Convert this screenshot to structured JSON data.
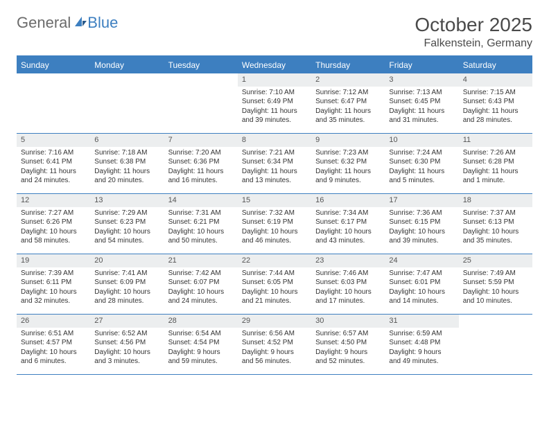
{
  "logo": {
    "text_general": "General",
    "text_blue": "Blue"
  },
  "title": "October 2025",
  "location": "Falkenstein, Germany",
  "colors": {
    "accent": "#3d7fc0",
    "header_bg": "#3d7fc0",
    "header_text": "#ffffff",
    "daynum_bg": "#eceeef",
    "text": "#333333",
    "logo_grey": "#6b6b6b"
  },
  "day_headers": [
    "Sunday",
    "Monday",
    "Tuesday",
    "Wednesday",
    "Thursday",
    "Friday",
    "Saturday"
  ],
  "weeks": [
    [
      {
        "day": "",
        "sunrise": "",
        "sunset": "",
        "daylight": ""
      },
      {
        "day": "",
        "sunrise": "",
        "sunset": "",
        "daylight": ""
      },
      {
        "day": "",
        "sunrise": "",
        "sunset": "",
        "daylight": ""
      },
      {
        "day": "1",
        "sunrise": "Sunrise: 7:10 AM",
        "sunset": "Sunset: 6:49 PM",
        "daylight": "Daylight: 11 hours and 39 minutes."
      },
      {
        "day": "2",
        "sunrise": "Sunrise: 7:12 AM",
        "sunset": "Sunset: 6:47 PM",
        "daylight": "Daylight: 11 hours and 35 minutes."
      },
      {
        "day": "3",
        "sunrise": "Sunrise: 7:13 AM",
        "sunset": "Sunset: 6:45 PM",
        "daylight": "Daylight: 11 hours and 31 minutes."
      },
      {
        "day": "4",
        "sunrise": "Sunrise: 7:15 AM",
        "sunset": "Sunset: 6:43 PM",
        "daylight": "Daylight: 11 hours and 28 minutes."
      }
    ],
    [
      {
        "day": "5",
        "sunrise": "Sunrise: 7:16 AM",
        "sunset": "Sunset: 6:41 PM",
        "daylight": "Daylight: 11 hours and 24 minutes."
      },
      {
        "day": "6",
        "sunrise": "Sunrise: 7:18 AM",
        "sunset": "Sunset: 6:38 PM",
        "daylight": "Daylight: 11 hours and 20 minutes."
      },
      {
        "day": "7",
        "sunrise": "Sunrise: 7:20 AM",
        "sunset": "Sunset: 6:36 PM",
        "daylight": "Daylight: 11 hours and 16 minutes."
      },
      {
        "day": "8",
        "sunrise": "Sunrise: 7:21 AM",
        "sunset": "Sunset: 6:34 PM",
        "daylight": "Daylight: 11 hours and 13 minutes."
      },
      {
        "day": "9",
        "sunrise": "Sunrise: 7:23 AM",
        "sunset": "Sunset: 6:32 PM",
        "daylight": "Daylight: 11 hours and 9 minutes."
      },
      {
        "day": "10",
        "sunrise": "Sunrise: 7:24 AM",
        "sunset": "Sunset: 6:30 PM",
        "daylight": "Daylight: 11 hours and 5 minutes."
      },
      {
        "day": "11",
        "sunrise": "Sunrise: 7:26 AM",
        "sunset": "Sunset: 6:28 PM",
        "daylight": "Daylight: 11 hours and 1 minute."
      }
    ],
    [
      {
        "day": "12",
        "sunrise": "Sunrise: 7:27 AM",
        "sunset": "Sunset: 6:26 PM",
        "daylight": "Daylight: 10 hours and 58 minutes."
      },
      {
        "day": "13",
        "sunrise": "Sunrise: 7:29 AM",
        "sunset": "Sunset: 6:23 PM",
        "daylight": "Daylight: 10 hours and 54 minutes."
      },
      {
        "day": "14",
        "sunrise": "Sunrise: 7:31 AM",
        "sunset": "Sunset: 6:21 PM",
        "daylight": "Daylight: 10 hours and 50 minutes."
      },
      {
        "day": "15",
        "sunrise": "Sunrise: 7:32 AM",
        "sunset": "Sunset: 6:19 PM",
        "daylight": "Daylight: 10 hours and 46 minutes."
      },
      {
        "day": "16",
        "sunrise": "Sunrise: 7:34 AM",
        "sunset": "Sunset: 6:17 PM",
        "daylight": "Daylight: 10 hours and 43 minutes."
      },
      {
        "day": "17",
        "sunrise": "Sunrise: 7:36 AM",
        "sunset": "Sunset: 6:15 PM",
        "daylight": "Daylight: 10 hours and 39 minutes."
      },
      {
        "day": "18",
        "sunrise": "Sunrise: 7:37 AM",
        "sunset": "Sunset: 6:13 PM",
        "daylight": "Daylight: 10 hours and 35 minutes."
      }
    ],
    [
      {
        "day": "19",
        "sunrise": "Sunrise: 7:39 AM",
        "sunset": "Sunset: 6:11 PM",
        "daylight": "Daylight: 10 hours and 32 minutes."
      },
      {
        "day": "20",
        "sunrise": "Sunrise: 7:41 AM",
        "sunset": "Sunset: 6:09 PM",
        "daylight": "Daylight: 10 hours and 28 minutes."
      },
      {
        "day": "21",
        "sunrise": "Sunrise: 7:42 AM",
        "sunset": "Sunset: 6:07 PM",
        "daylight": "Daylight: 10 hours and 24 minutes."
      },
      {
        "day": "22",
        "sunrise": "Sunrise: 7:44 AM",
        "sunset": "Sunset: 6:05 PM",
        "daylight": "Daylight: 10 hours and 21 minutes."
      },
      {
        "day": "23",
        "sunrise": "Sunrise: 7:46 AM",
        "sunset": "Sunset: 6:03 PM",
        "daylight": "Daylight: 10 hours and 17 minutes."
      },
      {
        "day": "24",
        "sunrise": "Sunrise: 7:47 AM",
        "sunset": "Sunset: 6:01 PM",
        "daylight": "Daylight: 10 hours and 14 minutes."
      },
      {
        "day": "25",
        "sunrise": "Sunrise: 7:49 AM",
        "sunset": "Sunset: 5:59 PM",
        "daylight": "Daylight: 10 hours and 10 minutes."
      }
    ],
    [
      {
        "day": "26",
        "sunrise": "Sunrise: 6:51 AM",
        "sunset": "Sunset: 4:57 PM",
        "daylight": "Daylight: 10 hours and 6 minutes."
      },
      {
        "day": "27",
        "sunrise": "Sunrise: 6:52 AM",
        "sunset": "Sunset: 4:56 PM",
        "daylight": "Daylight: 10 hours and 3 minutes."
      },
      {
        "day": "28",
        "sunrise": "Sunrise: 6:54 AM",
        "sunset": "Sunset: 4:54 PM",
        "daylight": "Daylight: 9 hours and 59 minutes."
      },
      {
        "day": "29",
        "sunrise": "Sunrise: 6:56 AM",
        "sunset": "Sunset: 4:52 PM",
        "daylight": "Daylight: 9 hours and 56 minutes."
      },
      {
        "day": "30",
        "sunrise": "Sunrise: 6:57 AM",
        "sunset": "Sunset: 4:50 PM",
        "daylight": "Daylight: 9 hours and 52 minutes."
      },
      {
        "day": "31",
        "sunrise": "Sunrise: 6:59 AM",
        "sunset": "Sunset: 4:48 PM",
        "daylight": "Daylight: 9 hours and 49 minutes."
      },
      {
        "day": "",
        "sunrise": "",
        "sunset": "",
        "daylight": ""
      }
    ]
  ]
}
